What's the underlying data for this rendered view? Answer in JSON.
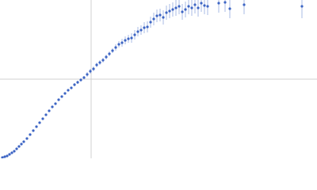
{
  "chart_data": {
    "type": "scatter",
    "x": [
      3,
      6,
      9,
      12,
      15,
      18,
      21,
      24,
      27,
      30,
      34,
      38,
      42,
      46,
      50,
      54,
      58,
      62,
      66,
      70,
      74,
      78,
      82,
      86,
      90,
      94,
      98,
      102,
      106,
      110,
      114,
      118,
      122,
      126,
      130,
      134,
      138,
      142,
      146,
      150,
      154,
      158,
      162,
      166,
      170,
      174,
      178,
      182,
      186,
      190,
      194,
      198,
      202,
      206,
      210,
      214,
      218,
      222,
      226,
      230,
      234,
      238,
      242,
      246,
      250,
      254,
      258,
      262,
      276,
      284,
      290,
      308,
      381
    ],
    "values": [
      1,
      2,
      3,
      5,
      7,
      9,
      12,
      15,
      18,
      21,
      25,
      30,
      35,
      40,
      45,
      50,
      55,
      60,
      65,
      69,
      74,
      78,
      82,
      86,
      89,
      93,
      96,
      99,
      102,
      106,
      110,
      113,
      118,
      121,
      124,
      128,
      132,
      136,
      140,
      144,
      146,
      149,
      151,
      152,
      156,
      160,
      162,
      165,
      166,
      172,
      176,
      180,
      181,
      178,
      184,
      186,
      188,
      190,
      192,
      185,
      188,
      192,
      190,
      194,
      190,
      196,
      193,
      192,
      196,
      197,
      189,
      194,
      192
    ],
    "errors": [
      1,
      1,
      1,
      1,
      1,
      1,
      1,
      1,
      1,
      1,
      1,
      1,
      1,
      1,
      1,
      1,
      1,
      1,
      1,
      1,
      1,
      1,
      1,
      1,
      1,
      2,
      2,
      2,
      2,
      3,
      3,
      3,
      3,
      3,
      3,
      3,
      3,
      3,
      4,
      4,
      5,
      5,
      5,
      6,
      6,
      6,
      6,
      7,
      7,
      7,
      8,
      8,
      8,
      9,
      9,
      9,
      9,
      10,
      10,
      10,
      10,
      10,
      10,
      11,
      11,
      11,
      11,
      11,
      12,
      12,
      12,
      12,
      15
    ],
    "color": "#3d65c4",
    "error_color": "#a8bbe6",
    "xlim": [
      0,
      400
    ],
    "ylim": [
      0,
      200
    ],
    "xticks": [
      115
    ],
    "yticks": [
      100
    ],
    "grid": true
  }
}
